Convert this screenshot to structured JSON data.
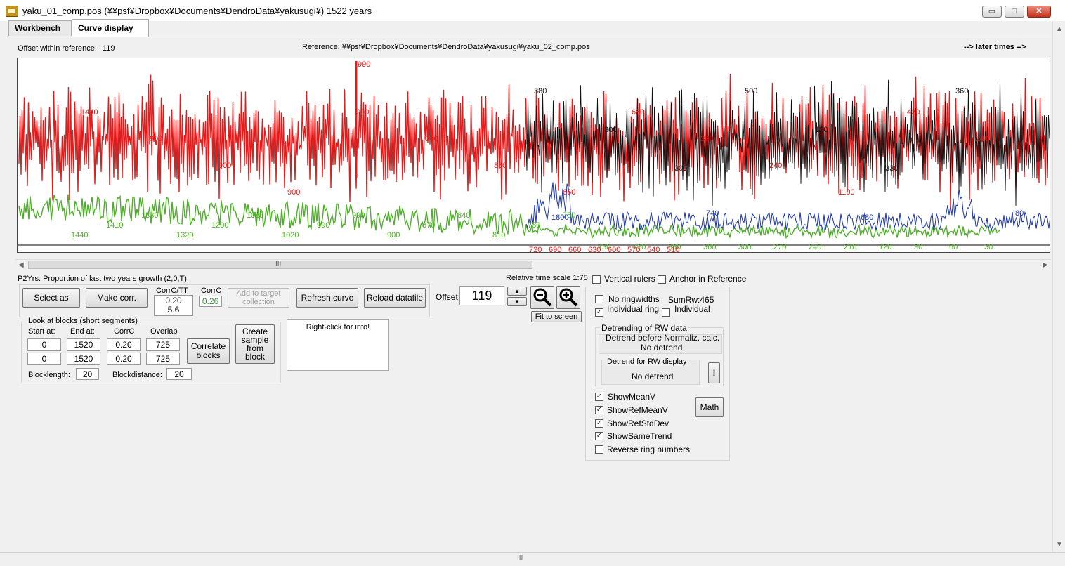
{
  "window": {
    "title": "yaku_01_comp.pos     (¥¥psf¥Dropbox¥Documents¥DendroData¥yakusugi¥)  1522 years",
    "min_glyph": "▭",
    "max_glyph": "□",
    "close_glyph": "✕"
  },
  "tabs": [
    {
      "label": "Workbench"
    },
    {
      "label": "Curve display"
    }
  ],
  "header": {
    "offset_label": "Offset within reference:",
    "offset_value": "119",
    "reference_path": "Reference: ¥¥psf¥Dropbox¥Documents¥DendroData¥yakusugi¥yaku_02_comp.pos",
    "later_times": "--> later times -->"
  },
  "chart_data": {
    "type": "line",
    "colors": {
      "sample": "#e31b1b",
      "reference": "#111111",
      "sample_trend": "#4fae2a",
      "reference_trend": "#1a33a6"
    },
    "series": [],
    "annotations": {
      "peak_label": "990",
      "red_labels": [
        "1440",
        "900",
        "900",
        "900",
        "900",
        "540",
        "880",
        "660",
        "680",
        "330",
        "240",
        "1100",
        "420",
        "240"
      ],
      "black_labels": [
        "380",
        "300",
        "300",
        "500",
        "120",
        "330",
        "360"
      ],
      "green_labels": [
        "1440",
        "1410",
        "1330",
        "1320",
        "1200",
        "1080",
        "1020",
        "990",
        "990",
        "900",
        "870",
        "840",
        "810",
        "780",
        "750",
        "130",
        "420",
        "390",
        "360",
        "300",
        "270",
        "240",
        "210",
        "120",
        "90",
        "60",
        "30"
      ],
      "blue_labels": [
        "1800",
        "740",
        "680",
        "80"
      ],
      "x_tick_labels": [
        "720",
        "690",
        "660",
        "630",
        "600",
        "570",
        "540",
        "510"
      ]
    }
  },
  "hscroll": {
    "grip": "III"
  },
  "controls": {
    "status_text": "P2Yrs: Proportion of last two years growth (2,0,T)",
    "select_as": "Select as",
    "make_corr": "Make corr.",
    "corrc_tt_label": "CorrC/TT",
    "corrc_tt_value1": "0.20",
    "corrc_tt_value2": "5.6",
    "corrc_label": "CorrC",
    "corrc_value": "0.26",
    "add_to_target": "Add to target collection",
    "refresh_curve": "Refresh curve",
    "reload_datafile": "Reload datafile",
    "offset_label": "Offset:",
    "offset_value": "119",
    "relative_time_scale": "Relative time scale 1:75",
    "vertical_rulers": "Vertical rulers",
    "anchor_in_reference": "Anchor in Reference",
    "fit_to_screen": "Fit to screen",
    "info_text": "Right-click for info!"
  },
  "blocks": {
    "title": "Look at blocks (short segments)",
    "headers": [
      "Start at:",
      "End at:",
      "CorrC",
      "Overlap"
    ],
    "rows": [
      [
        "0",
        "1520",
        "0.20",
        "725"
      ],
      [
        "0",
        "1520",
        "0.20",
        "725"
      ]
    ],
    "correlate_blocks": "Correlate blocks",
    "create_sample": "Create sample from block",
    "blocklength_label": "Blocklength:",
    "blocklength_value": "20",
    "blockdistance_label": "Blockdistance:",
    "blockdistance_value": "20"
  },
  "options": {
    "no_ringwidths": "No ringwidths",
    "individual_ring": "Individual ring",
    "sumrw": "SumRw:465",
    "individual": "Individual",
    "detrending_title": "Detrending of RW data",
    "detrend_before_label": "Detrend before Normaliz. calc.",
    "detrend_before_value": "No detrend",
    "detrend_display_label": "Detrend for RW display",
    "detrend_display_value": "No detrend",
    "detrend_btn": "!",
    "show_mean_v": "ShowMeanV",
    "show_ref_mean_v": "ShowRefMeanV",
    "show_ref_std_dev": "ShowRefStdDev",
    "show_same_trend": "ShowSameTrend",
    "reverse_ring_numbers": "Reverse ring numbers",
    "math": "Math",
    "checked_glyph": "✓"
  },
  "bottom_scroll": {
    "grip": "III"
  }
}
